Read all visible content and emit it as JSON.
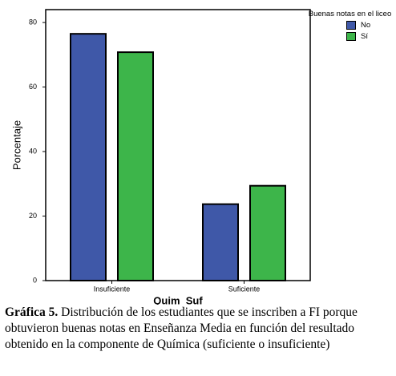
{
  "chart_data": {
    "type": "bar",
    "categories": [
      "Insuficiente",
      "Suficiente"
    ],
    "series": [
      {
        "name": "No",
        "color": "#3f58a8",
        "values": [
          76.5,
          23.7
        ]
      },
      {
        "name": "Sí",
        "color": "#3db54a",
        "values": [
          70.8,
          29.4
        ]
      }
    ],
    "ylim": [
      0,
      84
    ],
    "yticks": [
      0,
      20,
      40,
      60,
      80
    ],
    "y_label": "Porcentaje",
    "x_label": "Quim_Suf",
    "legend_title": "Buenas notas en el liceo",
    "legend": "top-right",
    "caption_label": "Gráfica 5.",
    "caption": "Distribución de los estudiantes  que  se inscriben a FI porque obtuvieron buenas notas en Enseñanza Media en función del resultado obtenido en la componente de Química (suficiente o insuficiente)"
  }
}
